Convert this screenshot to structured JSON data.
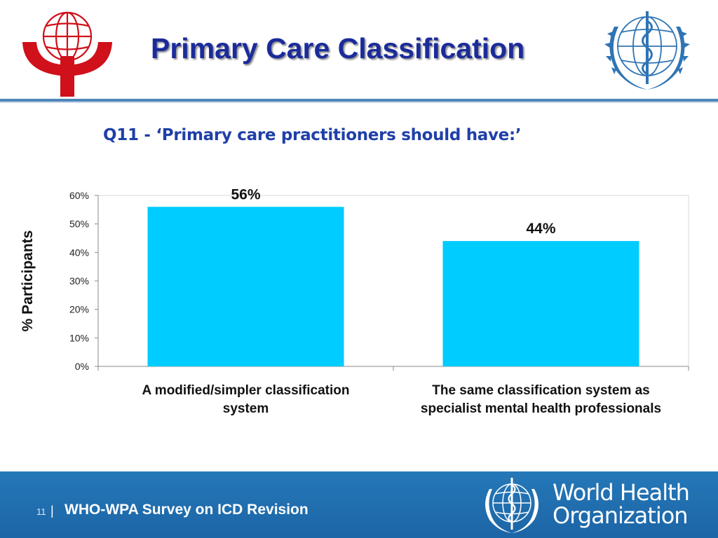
{
  "slide": {
    "title": "Primary Care Classification",
    "question": "Q11 - ‘Primary care practitioners should have:’"
  },
  "logos": {
    "left": "WPA globe logo",
    "right": "WHO emblem"
  },
  "footer": {
    "page_number": "11",
    "separator": "|",
    "survey_title": "WHO-WPA Survey on ICD Revision",
    "org_line1": "World Health",
    "org_line2": "Organization"
  },
  "colors": {
    "title": "#1b2b9a",
    "bar": "#00ccff",
    "footer": "#1f6fb0",
    "wpa_red": "#d0101a",
    "who_blue": "#2f74b5"
  },
  "chart_data": {
    "type": "bar",
    "title": "",
    "xlabel": "",
    "ylabel": "%  Participants",
    "ylim": [
      0,
      60
    ],
    "yticks": [
      0,
      10,
      20,
      30,
      40,
      50,
      60
    ],
    "ytick_labels": [
      "0%",
      "10%",
      "20%",
      "30%",
      "40%",
      "50%",
      "60%"
    ],
    "categories": [
      [
        "A modified/simpler classification",
        "system"
      ],
      [
        "The same classification system as",
        "specialist mental health professionals"
      ]
    ],
    "values": [
      56,
      44
    ],
    "value_labels": [
      "56%",
      "44%"
    ],
    "grid": false
  }
}
